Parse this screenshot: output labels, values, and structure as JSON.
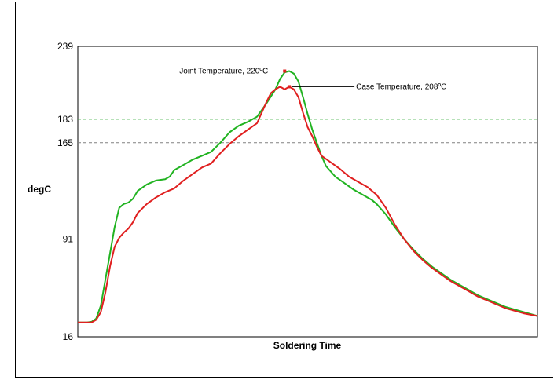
{
  "chart_data": {
    "type": "line",
    "title": "",
    "xlabel": "Soldering Time",
    "ylabel": "degC",
    "ylim": [
      16,
      239
    ],
    "xlim": [
      0,
      100
    ],
    "yticks": [
      "239",
      "183",
      "165",
      "91",
      "16"
    ],
    "reference_lines": [
      {
        "value": 183,
        "label": "183",
        "color": "#3cb043"
      },
      {
        "value": 165,
        "label": "165",
        "color": "#808080"
      },
      {
        "value": 91,
        "label": "91",
        "color": "#808080"
      }
    ],
    "annotations": [
      {
        "text": "Joint Temperature, 220ºC",
        "x": 45,
        "y": 220
      },
      {
        "text": "Case Temperature, 208ºC",
        "x": 46,
        "y": 208
      }
    ],
    "series": [
      {
        "color": "#21b321",
        "points": [
          [
            0,
            27
          ],
          [
            2,
            27
          ],
          [
            3,
            27.5
          ],
          [
            4,
            30
          ],
          [
            5,
            40
          ],
          [
            6,
            60
          ],
          [
            7,
            80
          ],
          [
            8,
            100
          ],
          [
            9,
            115
          ],
          [
            10,
            118
          ],
          [
            11,
            119
          ],
          [
            12,
            122
          ],
          [
            13,
            128
          ],
          [
            15,
            133
          ],
          [
            17,
            136
          ],
          [
            19,
            137
          ],
          [
            20,
            139
          ],
          [
            21,
            144
          ],
          [
            23,
            148
          ],
          [
            25,
            152
          ],
          [
            27,
            155
          ],
          [
            29,
            158
          ],
          [
            31,
            165
          ],
          [
            33,
            173
          ],
          [
            35,
            178
          ],
          [
            37,
            181
          ],
          [
            39,
            185
          ],
          [
            41,
            195
          ],
          [
            43,
            206
          ],
          [
            44,
            214
          ],
          [
            45,
            219
          ],
          [
            46,
            220
          ],
          [
            47,
            218
          ],
          [
            48,
            212
          ],
          [
            49,
            200
          ],
          [
            50,
            187
          ],
          [
            51,
            175
          ],
          [
            52,
            165
          ],
          [
            53,
            155
          ],
          [
            54,
            147
          ],
          [
            56,
            139
          ],
          [
            58,
            134
          ],
          [
            60,
            129
          ],
          [
            62,
            125
          ],
          [
            64,
            121
          ],
          [
            65,
            118
          ],
          [
            67,
            110
          ],
          [
            69,
            100
          ],
          [
            71,
            91
          ],
          [
            73,
            83
          ],
          [
            75,
            76
          ],
          [
            77,
            70
          ],
          [
            79,
            65
          ],
          [
            81,
            60
          ],
          [
            83,
            56
          ],
          [
            85,
            52
          ],
          [
            87,
            48
          ],
          [
            89,
            45
          ],
          [
            91,
            42
          ],
          [
            93,
            39
          ],
          [
            95,
            37
          ],
          [
            97,
            35
          ],
          [
            100,
            32
          ]
        ]
      },
      {
        "color": "#e02020",
        "points": [
          [
            0,
            27
          ],
          [
            2,
            27
          ],
          [
            3,
            27
          ],
          [
            4,
            29
          ],
          [
            5,
            35
          ],
          [
            6,
            50
          ],
          [
            7,
            70
          ],
          [
            8,
            85
          ],
          [
            9,
            92
          ],
          [
            10,
            96
          ],
          [
            11,
            99
          ],
          [
            12,
            104
          ],
          [
            13,
            111
          ],
          [
            15,
            118
          ],
          [
            17,
            123
          ],
          [
            19,
            127
          ],
          [
            21,
            130
          ],
          [
            23,
            136
          ],
          [
            25,
            141
          ],
          [
            27,
            146
          ],
          [
            29,
            149
          ],
          [
            31,
            157
          ],
          [
            33,
            164
          ],
          [
            35,
            170
          ],
          [
            37,
            175
          ],
          [
            39,
            180
          ],
          [
            40,
            188
          ],
          [
            41,
            196
          ],
          [
            42,
            203
          ],
          [
            43,
            206
          ],
          [
            44,
            208
          ],
          [
            45,
            206
          ],
          [
            46,
            208
          ],
          [
            47,
            206
          ],
          [
            48,
            200
          ],
          [
            49,
            188
          ],
          [
            50,
            177
          ],
          [
            51,
            170
          ],
          [
            52,
            162
          ],
          [
            53,
            155
          ],
          [
            55,
            150
          ],
          [
            57,
            145
          ],
          [
            59,
            139
          ],
          [
            61,
            135
          ],
          [
            63,
            131
          ],
          [
            65,
            125
          ],
          [
            67,
            115
          ],
          [
            69,
            102
          ],
          [
            71,
            91
          ],
          [
            73,
            82
          ],
          [
            75,
            75
          ],
          [
            77,
            69
          ],
          [
            79,
            64
          ],
          [
            81,
            59
          ],
          [
            83,
            55
          ],
          [
            85,
            51
          ],
          [
            87,
            47
          ],
          [
            89,
            44
          ],
          [
            91,
            41
          ],
          [
            93,
            38
          ],
          [
            95,
            36
          ],
          [
            97,
            34
          ],
          [
            100,
            32
          ]
        ]
      }
    ]
  }
}
